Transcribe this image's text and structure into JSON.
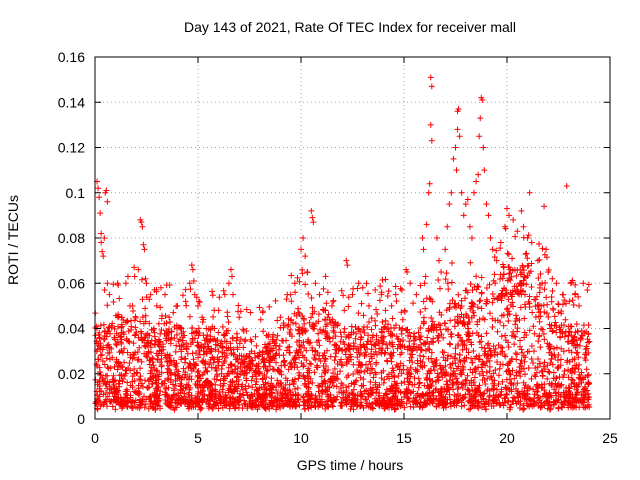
{
  "chart_data": {
    "type": "scatter",
    "title": "Day 143 of 2021, Rate Of TEC Index for receiver mall",
    "xlabel": "GPS time / hours",
    "ylabel": "ROTI / TECUs",
    "xlim": [
      0,
      25
    ],
    "ylim": [
      0,
      0.16
    ],
    "xticks": [
      0,
      5,
      10,
      15,
      20,
      25
    ],
    "xtick_labels": [
      "0",
      "5",
      "10",
      "15",
      "20",
      "25"
    ],
    "yticks": [
      0,
      0.02,
      0.04,
      0.06,
      0.08,
      0.1,
      0.12,
      0.14,
      0.16
    ],
    "ytick_labels": [
      "0",
      "0.02",
      "0.04",
      "0.06",
      "0.08",
      "0.1",
      "0.12",
      "0.14",
      "0.16"
    ],
    "grid": true,
    "marker": "+",
    "marker_color": "#ff0000",
    "series": [
      {
        "name": "ROTI",
        "points": [
          [
            0.1,
            0.105
          ],
          [
            0.15,
            0.102
          ],
          [
            0.2,
            0.098
          ],
          [
            0.25,
            0.091
          ],
          [
            0.3,
            0.082
          ],
          [
            0.3,
            0.078
          ],
          [
            0.35,
            0.074
          ],
          [
            0.4,
            0.072
          ],
          [
            0.45,
            0.08
          ],
          [
            0.5,
            0.1
          ],
          [
            0.55,
            0.101
          ],
          [
            0.6,
            0.096
          ],
          [
            0.6,
            0.06
          ],
          [
            0.7,
            0.055
          ],
          [
            1.1,
            0.06
          ],
          [
            1.3,
            0.045
          ],
          [
            1.5,
            0.06
          ],
          [
            1.6,
            0.063
          ],
          [
            1.7,
            0.05
          ],
          [
            1.9,
            0.067
          ],
          [
            2.1,
            0.066
          ],
          [
            2.2,
            0.088
          ],
          [
            2.25,
            0.087
          ],
          [
            2.3,
            0.085
          ],
          [
            2.35,
            0.077
          ],
          [
            2.4,
            0.075
          ],
          [
            2.45,
            0.062
          ],
          [
            2.5,
            0.06
          ],
          [
            2.7,
            0.055
          ],
          [
            3.0,
            0.05
          ],
          [
            3.2,
            0.058
          ],
          [
            3.4,
            0.055
          ],
          [
            3.6,
            0.045
          ],
          [
            3.8,
            0.047
          ],
          [
            4.0,
            0.05
          ],
          [
            4.2,
            0.04
          ],
          [
            4.4,
            0.052
          ],
          [
            4.6,
            0.06
          ],
          [
            4.7,
            0.068
          ],
          [
            4.75,
            0.066
          ],
          [
            4.8,
            0.061
          ],
          [
            5.0,
            0.05
          ],
          [
            5.2,
            0.045
          ],
          [
            5.4,
            0.04
          ],
          [
            5.6,
            0.035
          ],
          [
            5.8,
            0.04
          ],
          [
            6.0,
            0.048
          ],
          [
            6.3,
            0.055
          ],
          [
            6.5,
            0.06
          ],
          [
            6.6,
            0.066
          ],
          [
            6.65,
            0.063
          ],
          [
            6.7,
            0.055
          ],
          [
            7.0,
            0.045
          ],
          [
            7.3,
            0.035
          ],
          [
            7.6,
            0.03
          ],
          [
            7.9,
            0.028
          ],
          [
            8.2,
            0.025
          ],
          [
            8.5,
            0.03
          ],
          [
            8.8,
            0.035
          ],
          [
            9.0,
            0.045
          ],
          [
            9.3,
            0.053
          ],
          [
            9.5,
            0.055
          ],
          [
            9.7,
            0.06
          ],
          [
            10.0,
            0.075
          ],
          [
            10.1,
            0.08
          ],
          [
            10.2,
            0.072
          ],
          [
            10.3,
            0.065
          ],
          [
            10.5,
            0.092
          ],
          [
            10.55,
            0.089
          ],
          [
            10.6,
            0.087
          ],
          [
            10.7,
            0.06
          ],
          [
            10.9,
            0.055
          ],
          [
            11.1,
            0.048
          ],
          [
            11.3,
            0.045
          ],
          [
            11.5,
            0.05
          ],
          [
            11.8,
            0.042
          ],
          [
            12.1,
            0.048
          ],
          [
            12.2,
            0.07
          ],
          [
            12.25,
            0.068
          ],
          [
            12.5,
            0.055
          ],
          [
            12.8,
            0.06
          ],
          [
            13.0,
            0.058
          ],
          [
            13.3,
            0.05
          ],
          [
            13.6,
            0.057
          ],
          [
            13.9,
            0.055
          ],
          [
            14.1,
            0.048
          ],
          [
            14.4,
            0.05
          ],
          [
            14.6,
            0.055
          ],
          [
            14.9,
            0.057
          ],
          [
            15.1,
            0.066
          ],
          [
            15.15,
            0.065
          ],
          [
            15.3,
            0.06
          ],
          [
            15.6,
            0.055
          ],
          [
            15.8,
            0.059
          ],
          [
            15.9,
            0.08
          ],
          [
            15.95,
            0.075
          ],
          [
            16.0,
            0.06
          ],
          [
            16.05,
            0.063
          ],
          [
            16.1,
            0.086
          ],
          [
            16.2,
            0.1
          ],
          [
            16.25,
            0.104
          ],
          [
            16.3,
            0.13
          ],
          [
            16.35,
            0.123
          ],
          [
            16.3,
            0.151
          ],
          [
            16.35,
            0.147
          ],
          [
            16.6,
            0.08
          ],
          [
            16.7,
            0.07
          ],
          [
            16.8,
            0.065
          ],
          [
            17.0,
            0.075
          ],
          [
            17.1,
            0.085
          ],
          [
            17.2,
            0.095
          ],
          [
            17.3,
            0.1
          ],
          [
            17.4,
            0.115
          ],
          [
            17.5,
            0.12
          ],
          [
            17.55,
            0.11
          ],
          [
            17.6,
            0.128
          ],
          [
            17.6,
            0.136
          ],
          [
            17.65,
            0.137
          ],
          [
            17.7,
            0.125
          ],
          [
            17.8,
            0.1
          ],
          [
            17.9,
            0.09
          ],
          [
            18.0,
            0.095
          ],
          [
            18.1,
            0.097
          ],
          [
            18.2,
            0.085
          ],
          [
            18.3,
            0.08
          ],
          [
            18.4,
            0.1
          ],
          [
            18.5,
            0.105
          ],
          [
            18.6,
            0.108
          ],
          [
            18.65,
            0.125
          ],
          [
            18.7,
            0.133
          ],
          [
            18.75,
            0.142
          ],
          [
            18.8,
            0.141
          ],
          [
            18.85,
            0.12
          ],
          [
            18.9,
            0.11
          ],
          [
            19.0,
            0.095
          ],
          [
            19.1,
            0.09
          ],
          [
            19.2,
            0.08
          ],
          [
            19.3,
            0.075
          ],
          [
            19.5,
            0.07
          ],
          [
            19.7,
            0.078
          ],
          [
            19.9,
            0.085
          ],
          [
            20.0,
            0.093
          ],
          [
            20.1,
            0.09
          ],
          [
            20.3,
            0.088
          ],
          [
            20.5,
            0.083
          ],
          [
            20.7,
            0.092
          ],
          [
            20.8,
            0.085
          ],
          [
            21.0,
            0.08
          ],
          [
            21.1,
            0.1
          ],
          [
            21.2,
            0.078
          ],
          [
            21.5,
            0.07
          ],
          [
            21.7,
            0.06
          ],
          [
            21.8,
            0.094
          ],
          [
            21.9,
            0.075
          ],
          [
            22.0,
            0.065
          ],
          [
            22.2,
            0.062
          ],
          [
            22.4,
            0.06
          ],
          [
            22.7,
            0.055
          ],
          [
            22.9,
            0.103
          ],
          [
            23.1,
            0.06
          ],
          [
            23.3,
            0.055
          ],
          [
            23.5,
            0.05
          ],
          [
            23.7,
            0.06
          ],
          [
            23.9,
            0.057
          ]
        ]
      }
    ],
    "dense_band": {
      "x_range": [
        0,
        24
      ],
      "y_base_floor": 0.004,
      "y_upper_profile_hours": [
        0,
        2,
        4,
        6,
        8,
        9.5,
        10.5,
        12,
        14,
        15.5,
        16.5,
        18,
        19,
        20,
        21,
        22,
        23,
        24
      ],
      "y_upper_profile_values": [
        0.03,
        0.035,
        0.03,
        0.03,
        0.02,
        0.035,
        0.04,
        0.03,
        0.033,
        0.03,
        0.035,
        0.045,
        0.05,
        0.055,
        0.055,
        0.045,
        0.035,
        0.03
      ]
    }
  }
}
